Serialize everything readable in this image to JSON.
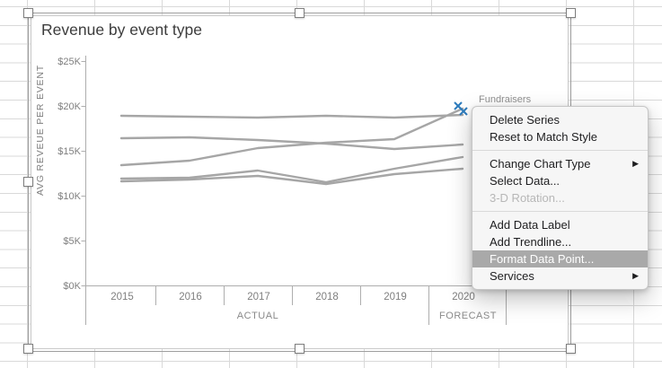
{
  "chart": {
    "title": "Revenue by event type",
    "y_axis_title": "AVG REVEUE PER EVENT",
    "y_tick_labels": [
      "$25K",
      "$20K",
      "$15K",
      "$10K",
      "$5K",
      "$0K"
    ],
    "x_tick_labels": [
      "2015",
      "2016",
      "2017",
      "2018",
      "2019",
      "2020"
    ],
    "group_actual_label": "ACTUAL",
    "group_forecast_label": "FORECAST",
    "selected_series_label": "Fundraisers",
    "line_color": "#a6a6a6",
    "axis_color": "#aeaeae",
    "marker_color": "#2e7cbd"
  },
  "chart_data": {
    "type": "line",
    "title": "Revenue by event type",
    "ylabel": "AVG REVEUE PER EVENT",
    "ylim": [
      0,
      25000
    ],
    "y_tick_labels_top_to_bottom": [
      "$25K",
      "$20K",
      "$15K",
      "$10K",
      "$5K",
      "$0K"
    ],
    "x": [
      "2015",
      "2016",
      "2017",
      "2018",
      "2019",
      "2020"
    ],
    "x_groups": [
      {
        "label": "ACTUAL",
        "from": "2015",
        "to": "2019"
      },
      {
        "label": "FORECAST",
        "from": "2020",
        "to": "2020"
      }
    ],
    "grid": false,
    "legend": false,
    "series": [
      {
        "name": null,
        "values": [
          18900,
          18800,
          18700,
          18900,
          18700,
          19000
        ]
      },
      {
        "name": null,
        "values": [
          16400,
          16500,
          16200,
          15800,
          15200,
          15700
        ]
      },
      {
        "name": "Fundraisers",
        "values": [
          13400,
          13900,
          15300,
          15900,
          16300,
          19700
        ],
        "selected": true,
        "selected_point": {
          "x": "2020",
          "value": 19700
        }
      },
      {
        "name": null,
        "values": [
          11900,
          12000,
          12800,
          11500,
          13000,
          14300
        ]
      },
      {
        "name": null,
        "values": [
          11600,
          11800,
          12200,
          11300,
          12400,
          13000
        ]
      }
    ]
  },
  "context_menu": {
    "highlight_color": "#a9a9a9",
    "items": [
      {
        "id": "delete-series",
        "label": "Delete Series",
        "type": "item"
      },
      {
        "id": "reset-to-match-style",
        "label": "Reset to Match Style",
        "type": "item"
      },
      {
        "type": "separator"
      },
      {
        "id": "change-chart-type",
        "label": "Change Chart Type",
        "type": "item",
        "submenu": true
      },
      {
        "id": "select-data",
        "label": "Select Data...",
        "type": "item"
      },
      {
        "id": "3d-rotation",
        "label": "3-D Rotation...",
        "type": "item",
        "disabled": true
      },
      {
        "type": "separator"
      },
      {
        "id": "add-data-label",
        "label": "Add Data Label",
        "type": "item"
      },
      {
        "id": "add-trendline",
        "label": "Add Trendline...",
        "type": "item"
      },
      {
        "id": "format-data-point",
        "label": "Format Data Point...",
        "type": "item",
        "highlighted": true
      },
      {
        "id": "services",
        "label": "Services",
        "type": "item",
        "submenu": true
      }
    ]
  }
}
